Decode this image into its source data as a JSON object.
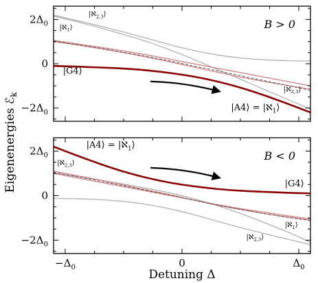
{
  "chart_data": [
    {
      "type": "line",
      "panel": "top",
      "annotation_sign": "B > 0",
      "xlim": [
        -1.1,
        1.1
      ],
      "ylim": [
        -2.6,
        2.6
      ],
      "series": [
        {
          "label": "|G4⟩",
          "color": "#8b0000",
          "role": "highlight",
          "x": [
            -1.1,
            -0.9,
            -0.7,
            -0.5,
            -0.3,
            -0.1,
            0.1,
            0.3,
            0.5,
            0.7,
            0.9,
            1.1
          ],
          "y": [
            -0.1,
            -0.13,
            -0.17,
            -0.22,
            -0.3,
            -0.42,
            -0.58,
            -0.8,
            -1.08,
            -1.42,
            -1.8,
            -2.2
          ]
        },
        {
          "label": "",
          "color": "#b0b0b0",
          "role": "gray-upper",
          "x": [
            -1.1,
            -0.9,
            -0.7,
            -0.5,
            -0.3,
            -0.1,
            0.1,
            0.3,
            0.5,
            0.7,
            0.9,
            1.1
          ],
          "y": [
            2.2,
            1.95,
            1.7,
            1.43,
            1.15,
            0.85,
            0.6,
            0.4,
            0.26,
            0.18,
            0.14,
            0.12
          ]
        },
        {
          "label": "",
          "color": "#b0b0b0",
          "role": "gray-lower",
          "x": [
            -1.1,
            -0.9,
            -0.7,
            -0.5,
            -0.3,
            -0.1,
            0.1,
            0.3,
            0.5,
            0.7,
            0.9,
            1.1
          ],
          "y": [
            2.15,
            1.9,
            1.62,
            1.32,
            1.0,
            0.62,
            0.2,
            -0.25,
            -0.7,
            -1.15,
            -1.6,
            -2.05
          ]
        },
        {
          "label": "",
          "color": "#d08080",
          "role": "pink-a",
          "x": [
            -1.1,
            -0.9,
            -0.7,
            -0.5,
            -0.3,
            -0.1,
            0.1,
            0.3,
            0.5,
            0.7,
            0.9,
            1.1
          ],
          "y": [
            1.05,
            0.9,
            0.74,
            0.58,
            0.4,
            0.2,
            0.0,
            -0.2,
            -0.4,
            -0.6,
            -0.8,
            -1.0
          ]
        },
        {
          "label": "",
          "color": "#d08080",
          "role": "pink-b",
          "x": [
            -1.1,
            -0.9,
            -0.7,
            -0.5,
            -0.3,
            -0.1,
            0.1,
            0.3,
            0.5,
            0.7,
            0.9,
            1.1
          ],
          "y": [
            1.0,
            0.85,
            0.68,
            0.5,
            0.3,
            0.08,
            -0.15,
            -0.38,
            -0.6,
            -0.8,
            -0.98,
            -1.15
          ]
        },
        {
          "label": "",
          "color": "#555555",
          "role": "dashed",
          "x": [
            -1.1,
            -0.9,
            -0.7,
            -0.5,
            -0.3,
            -0.1,
            0.1,
            0.3,
            0.5,
            0.7,
            0.9,
            1.1
          ],
          "y": [
            1.02,
            0.86,
            0.7,
            0.52,
            0.33,
            0.12,
            -0.1,
            -0.32,
            -0.54,
            -0.76,
            -0.98,
            -1.2
          ]
        }
      ],
      "labels": [
        {
          "text": "|ℵ2,3⟩",
          "x": -0.8,
          "y": 2.15,
          "size": "small"
        },
        {
          "text": "|ℵ1⟩",
          "x": -1.05,
          "y": 1.55,
          "size": "small"
        },
        {
          "text": "|G4⟩",
          "x": -1.02,
          "y": -0.45,
          "size": "normal"
        },
        {
          "text": "|ℵ2,3⟩",
          "x": 0.87,
          "y": -1.25,
          "size": "small"
        },
        {
          "text": "|A4⟩ = |ℵ1⟩",
          "x": 0.42,
          "y": -2.1,
          "size": "normal"
        }
      ],
      "arrow": {
        "from": [
          -0.27,
          -0.8
        ],
        "to": [
          0.32,
          -1.25
        ]
      }
    },
    {
      "type": "line",
      "panel": "bottom",
      "annotation_sign": "B < 0",
      "xlim": [
        -1.1,
        1.1
      ],
      "ylim": [
        -2.6,
        2.6
      ],
      "series": [
        {
          "label": "|G4⟩",
          "color": "#8b0000",
          "role": "highlight",
          "x": [
            -1.1,
            -0.9,
            -0.7,
            -0.5,
            -0.3,
            -0.1,
            0.1,
            0.3,
            0.5,
            0.7,
            0.9,
            1.1
          ],
          "y": [
            2.2,
            1.8,
            1.42,
            1.08,
            0.8,
            0.58,
            0.42,
            0.3,
            0.22,
            0.17,
            0.13,
            0.1
          ]
        },
        {
          "label": "",
          "color": "#b0b0b0",
          "role": "gray-upper",
          "x": [
            -1.1,
            -0.9,
            -0.7,
            -0.5,
            -0.3,
            -0.1,
            0.1,
            0.3,
            0.5,
            0.7,
            0.9,
            1.1
          ],
          "y": [
            -0.12,
            -0.14,
            -0.18,
            -0.26,
            -0.4,
            -0.6,
            -0.85,
            -1.15,
            -1.43,
            -1.7,
            -1.95,
            -2.2
          ]
        },
        {
          "label": "",
          "color": "#b0b0b0",
          "role": "gray-lower",
          "x": [
            -1.1,
            -0.9,
            -0.7,
            -0.5,
            -0.3,
            -0.1,
            0.1,
            0.3,
            0.5,
            0.7,
            0.9,
            1.1
          ],
          "y": [
            1.02,
            0.86,
            0.7,
            0.52,
            0.33,
            0.12,
            -0.14,
            -0.45,
            -0.8,
            -1.2,
            -1.62,
            -2.1
          ]
        },
        {
          "label": "",
          "color": "#d08080",
          "role": "pink-a",
          "x": [
            -1.1,
            -0.9,
            -0.7,
            -0.5,
            -0.3,
            -0.1,
            0.1,
            0.3,
            0.5,
            0.7,
            0.9,
            1.1
          ],
          "y": [
            1.0,
            0.8,
            0.6,
            0.4,
            0.2,
            0.0,
            -0.2,
            -0.4,
            -0.58,
            -0.74,
            -0.9,
            -1.05
          ]
        },
        {
          "label": "",
          "color": "#d08080",
          "role": "pink-b",
          "x": [
            -1.1,
            -0.9,
            -0.7,
            -0.5,
            -0.3,
            -0.1,
            0.1,
            0.3,
            0.5,
            0.7,
            0.9,
            1.1
          ],
          "y": [
            1.1,
            0.9,
            0.7,
            0.48,
            0.26,
            0.04,
            -0.2,
            -0.43,
            -0.62,
            -0.8,
            -0.96,
            -1.1
          ]
        },
        {
          "label": "",
          "color": "#555555",
          "role": "dashed",
          "x": [
            -1.1,
            -0.9,
            -0.7,
            -0.5,
            -0.3,
            -0.1,
            0.1,
            0.3,
            0.5,
            0.7,
            0.9,
            1.1
          ],
          "y": [
            1.05,
            0.85,
            0.65,
            0.44,
            0.23,
            0.02,
            -0.2,
            -0.42,
            -0.62,
            -0.8,
            -0.97,
            -1.12
          ]
        }
      ],
      "labels": [
        {
          "text": "|A4⟩ = |ℵ1⟩",
          "x": -0.82,
          "y": 2.15,
          "size": "normal"
        },
        {
          "text": "|ℵ2,3⟩",
          "x": -1.07,
          "y": 1.38,
          "size": "small"
        },
        {
          "text": "|G4⟩",
          "x": 0.88,
          "y": 0.42,
          "size": "normal"
        },
        {
          "text": "|ℵ1⟩",
          "x": 0.88,
          "y": -1.4,
          "size": "small"
        },
        {
          "text": "|ℵ2,3⟩",
          "x": 0.55,
          "y": -1.95,
          "size": "small"
        }
      ],
      "arrow": {
        "from": [
          -0.27,
          1.25
        ],
        "to": [
          0.32,
          0.8
        ]
      }
    }
  ],
  "axes": {
    "ylabel": "Eigenenergies ℰk",
    "xlabel": "Detuning Δ",
    "xticks": [
      {
        "value": -1,
        "label": "−Δ0"
      },
      {
        "value": 0,
        "label": "0"
      },
      {
        "value": 1,
        "label": "Δ0"
      }
    ],
    "yticks": [
      {
        "value": 2,
        "label": "2Δ0"
      },
      {
        "value": 0,
        "label": "0"
      },
      {
        "value": -2,
        "label": "−2Δ0"
      }
    ]
  }
}
